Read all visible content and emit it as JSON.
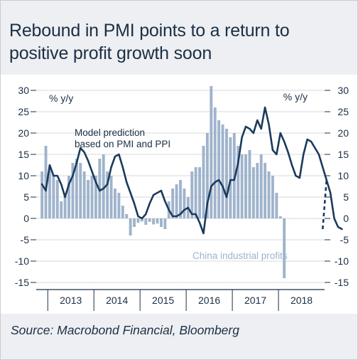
{
  "title": "Rebound in PMI points to a return to positive profit growth soon",
  "source": "Source: Macrobond Financial, Bloomberg",
  "colors": {
    "bars": "#9fb3cc",
    "line": "#1b3a5c",
    "text": "#1b2f45",
    "panel": "#eeeff2"
  },
  "chart_data": {
    "type": "bar",
    "title": "Rebound in PMI points to a return to positive profit growth soon",
    "left_unit": "% y/y",
    "right_unit": "% y/y",
    "ylim": [
      -15,
      32
    ],
    "yticks": [
      30,
      25,
      20,
      15,
      10,
      5,
      0,
      -5,
      -10,
      -15
    ],
    "ytick_labels": [
      "30",
      "25",
      "20",
      "15",
      "10",
      "5",
      "0",
      "-5",
      "-10",
      "-15"
    ],
    "x_start": "2012-10",
    "x_end": "2018-12",
    "year_labels": [
      "2013",
      "2014",
      "2015",
      "2016",
      "2017",
      "2018"
    ],
    "grid": true,
    "series": [
      {
        "name": "China industrial profits",
        "type": "bar",
        "frequency": "monthly",
        "start": "2012-11",
        "values": [
          11,
          17,
          12,
          10,
          9,
          4,
          6,
          10,
          13,
          14,
          13,
          11,
          9,
          10,
          10,
          14,
          15,
          11,
          10,
          7,
          6,
          3,
          1,
          -4,
          -2,
          -1,
          -0.7,
          -1.5,
          -0.8,
          -1.4,
          -1.2,
          -2,
          -2.5,
          4,
          7,
          8,
          9,
          7,
          5,
          11,
          12,
          12,
          17,
          20,
          31,
          26,
          23,
          22,
          21,
          19,
          20,
          17,
          15,
          15,
          16,
          12,
          13,
          15,
          13,
          11,
          10,
          6,
          0.5,
          -14
        ]
      },
      {
        "name": "Model prediction based on PMI and PPI",
        "type": "line",
        "frequency": "monthly",
        "start": "2012-11",
        "values": [
          8,
          6.5,
          12.5,
          10,
          10,
          8,
          5,
          8,
          10,
          13,
          16.5,
          15.5,
          13.5,
          11,
          8.5,
          6.5,
          7,
          8,
          12,
          14.5,
          15,
          12,
          8.5,
          6,
          3.5,
          0.5,
          0,
          1,
          3.5,
          5.5,
          6,
          6.5,
          4,
          2,
          0.5,
          0.5,
          1,
          2,
          2.5,
          1,
          1,
          -1,
          -3.5,
          3.5,
          7.5,
          8.5,
          9,
          7.5,
          5,
          9,
          9,
          13,
          19,
          21.5,
          21,
          20,
          23,
          21,
          26,
          22,
          16,
          15,
          20,
          18,
          15.5,
          12.5,
          10,
          9.5,
          15,
          18.5,
          18,
          16.5,
          15,
          12,
          9,
          6,
          0,
          -2,
          -2.5
        ],
        "prediction_start": "2018-12",
        "prediction_end": "2019-01",
        "prediction_values": [
          -2.5,
          9
        ]
      }
    ],
    "annotations": [
      {
        "lines": [
          "Model prediction",
          "based on PMI and PPI"
        ],
        "series": "Model prediction based on PMI and PPI"
      },
      {
        "lines": [
          "China industrial profits"
        ],
        "series": "China industrial profits"
      }
    ]
  }
}
